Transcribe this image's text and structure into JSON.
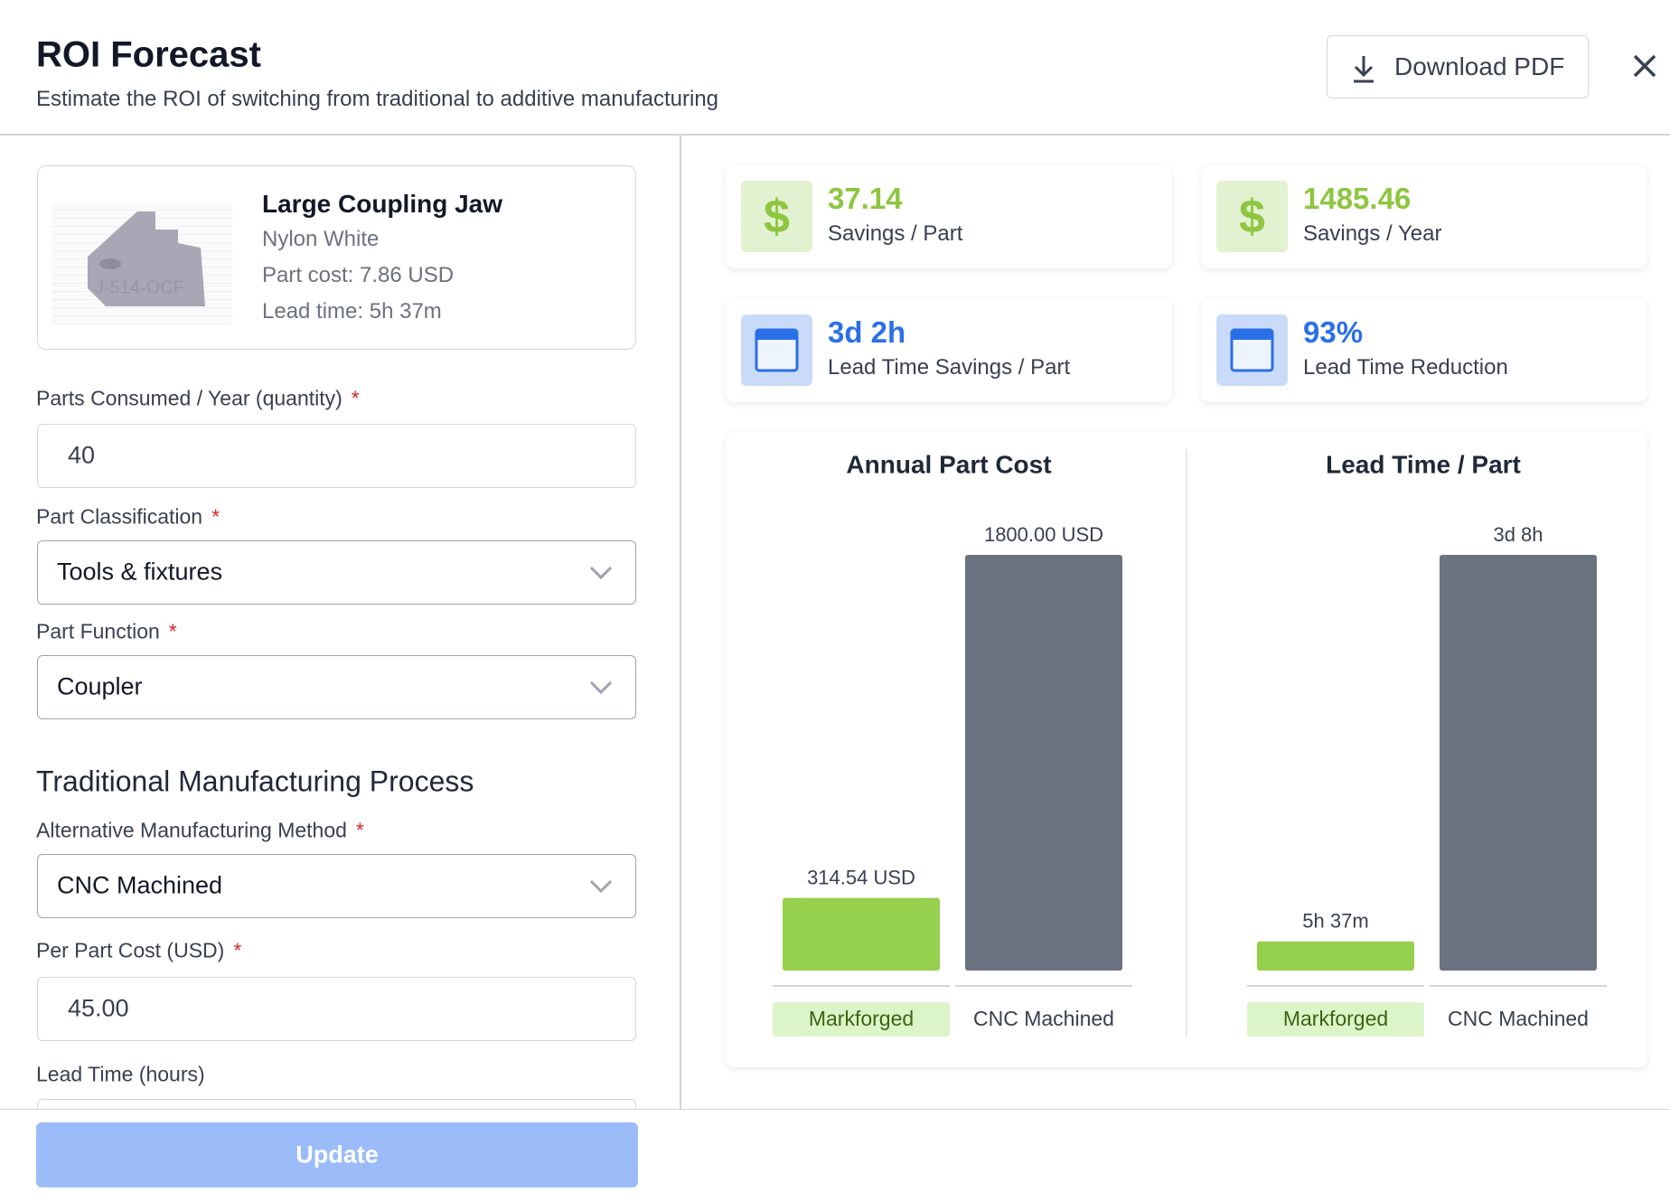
{
  "header": {
    "title": "ROI Forecast",
    "subtitle": "Estimate the ROI of switching from traditional to additive manufacturing",
    "download_button": "Download PDF"
  },
  "part": {
    "name": "Large Coupling Jaw",
    "material": "Nylon White",
    "cost": "Part cost: 7.86 USD",
    "lead_time": "Lead time: 5h 37m",
    "thumbnail_label": "J-514-OCF"
  },
  "form": {
    "required_mark": "*",
    "section_title": "Traditional Manufacturing Process",
    "fields": [
      {
        "label": "Parts Consumed / Year (quantity)",
        "required": true,
        "kind": "input",
        "value": "40"
      },
      {
        "label": "Part Classification",
        "required": true,
        "kind": "select",
        "value": "Tools & fixtures"
      },
      {
        "label": "Part Function",
        "required": true,
        "kind": "select",
        "value": "Coupler"
      },
      {
        "label": "Alternative Manufacturing Method",
        "required": true,
        "kind": "select",
        "value": "CNC Machined"
      },
      {
        "label": "Per Part Cost (USD)",
        "required": true,
        "kind": "input",
        "value": "45.00"
      },
      {
        "label": "Lead Time (hours)",
        "required": false,
        "kind": "input"
      }
    ],
    "update_button": "Update"
  },
  "stats": [
    {
      "value": "37.14",
      "label": "Savings / Part",
      "symbol": "$",
      "color": "#8dc63f"
    },
    {
      "value": "1485.46",
      "label": "Savings / Year",
      "symbol": "$",
      "color": "#8dc63f"
    },
    {
      "value": "3d 2h",
      "label": "Lead Time Savings / Part",
      "color": "#2b6fe8"
    },
    {
      "value": "93%",
      "label": "Lead Time Reduction",
      "color": "#2b6fe8"
    }
  ],
  "chart_data": [
    {
      "type": "bar",
      "title": "Annual Part Cost",
      "categories": [
        "Markforged",
        "CNC Machined"
      ],
      "values": [
        314.54,
        1800
      ],
      "value_labels": [
        "314.54 USD",
        "1800.00 USD"
      ],
      "colors": [
        "#94d04b",
        "#6b7280"
      ]
    },
    {
      "type": "bar",
      "title": "Lead Time / Part",
      "categories": [
        "Markforged",
        "CNC Machined"
      ],
      "values": [
        5.6167,
        80
      ],
      "value_labels": [
        "5h 37m",
        "3d 8h"
      ],
      "colors": [
        "#94d04b",
        "#6b7280"
      ]
    }
  ]
}
